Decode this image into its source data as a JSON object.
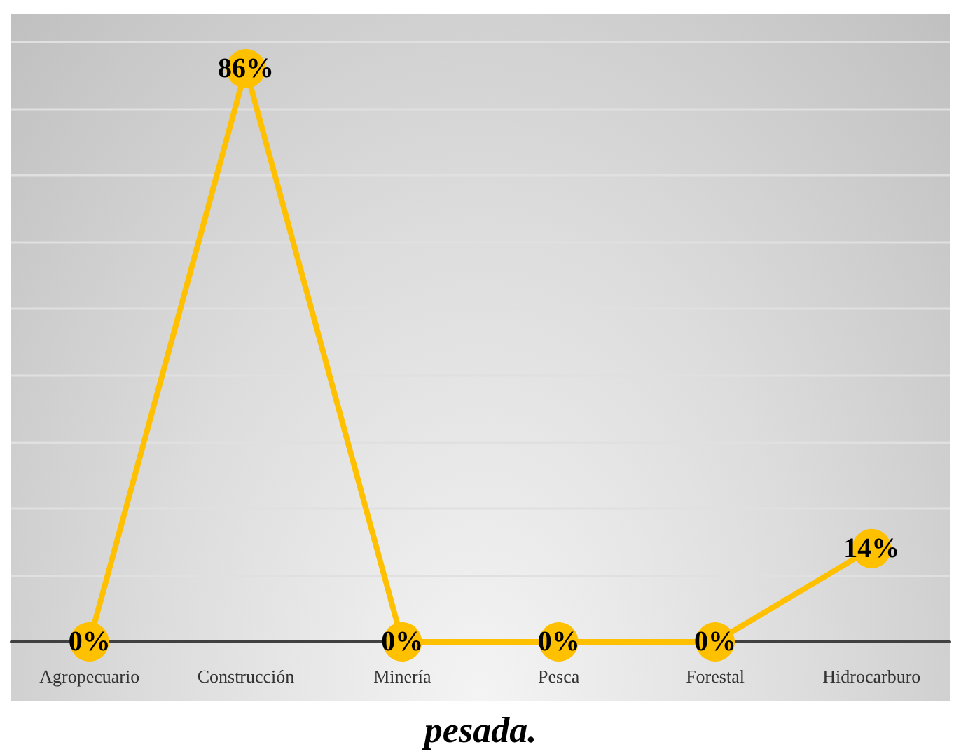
{
  "chart_data": {
    "type": "line",
    "categories": [
      "Agropecuario",
      "Construcción",
      "Minería",
      "Pesca",
      "Forestal",
      "Hidrocarburo"
    ],
    "series": [
      {
        "color": "#ffc000",
        "values": [
          0,
          86,
          0,
          0,
          0,
          14
        ],
        "value_labels": [
          "0%",
          "86%",
          "0%",
          "0%",
          "0%",
          "14%"
        ]
      }
    ],
    "ylim": [
      0,
      90
    ],
    "yticks": [
      {
        "value": 0,
        "label": null
      },
      {
        "value": 10,
        "label": null
      },
      {
        "value": 20,
        "label": null
      },
      {
        "value": 30,
        "label": null
      },
      {
        "value": 40,
        "label": null
      },
      {
        "value": 50,
        "label": null
      },
      {
        "value": 60,
        "label": null
      },
      {
        "value": 70,
        "label": null
      },
      {
        "value": 80,
        "label": null
      },
      {
        "value": 90,
        "label": null
      }
    ],
    "grid": "y",
    "tick_labels": "x",
    "marker": "circle",
    "line_style": "solid",
    "annotations": [
      "pesada."
    ]
  }
}
